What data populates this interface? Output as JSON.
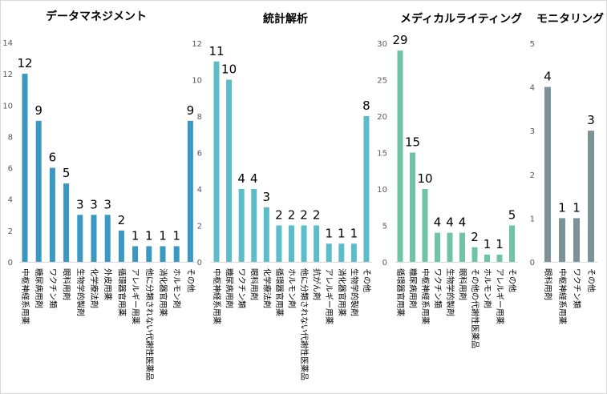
{
  "chart_data": [
    {
      "type": "bar",
      "title": "データマネジメント",
      "color": "#3a98c2",
      "ylim": [
        0,
        14
      ],
      "yticks": [
        0,
        2,
        4,
        6,
        8,
        10,
        12,
        14
      ],
      "categories": [
        "中枢神経系用薬",
        "糖尿病用剤",
        "ワクチン類",
        "眼科用剤",
        "生物学的製剤",
        "化学療法剤",
        "外皮用薬",
        "循環器官用薬",
        "アレルギー用薬",
        "他に分類されない代謝性医薬品",
        "消化器官用薬",
        "ホルモン剤",
        "その他"
      ],
      "values": [
        12,
        9,
        6,
        5,
        3,
        3,
        3,
        2,
        1,
        1,
        1,
        1,
        9
      ]
    },
    {
      "type": "bar",
      "title": "統計解析",
      "color": "#5cbcc8",
      "ylim": [
        0,
        12
      ],
      "yticks": [
        0,
        2,
        4,
        6,
        8,
        10,
        12
      ],
      "categories": [
        "中枢神経系用薬",
        "糖尿病用剤",
        "ワクチン類",
        "眼科用剤",
        "化学療法剤",
        "循環器官用薬",
        "ホルモン剤",
        "他に分類されない代謝性医薬品",
        "抗がん剤",
        "アレルギー用薬",
        "消化器官用薬",
        "生物学的製剤",
        "その他"
      ],
      "values": [
        11,
        10,
        4,
        4,
        3,
        2,
        2,
        2,
        2,
        1,
        1,
        1,
        8
      ]
    },
    {
      "type": "bar",
      "title": "メディカルライティング",
      "color": "#6ec4a4",
      "ylim": [
        0,
        30
      ],
      "yticks": [
        0,
        5,
        10,
        15,
        20,
        25,
        30
      ],
      "categories": [
        "循環器官用薬",
        "糖尿病用剤",
        "中枢神経系用薬",
        "ワクチン類",
        "生物学的製剤",
        "眼科用剤",
        "その他の代謝性医薬品",
        "ホルモン剤",
        "アレルギー用薬",
        "その他"
      ],
      "values": [
        29,
        15,
        10,
        4,
        4,
        4,
        2,
        1,
        1,
        5
      ]
    },
    {
      "type": "bar",
      "title": "モニタリング",
      "color": "#7b9398",
      "ylim": [
        0,
        5
      ],
      "yticks": [
        0,
        1,
        2,
        3,
        4,
        5
      ],
      "categories": [
        "眼科用剤",
        "中枢神経系用薬",
        "ワクチン類",
        "その他"
      ],
      "values": [
        4,
        1,
        1,
        3
      ]
    }
  ]
}
